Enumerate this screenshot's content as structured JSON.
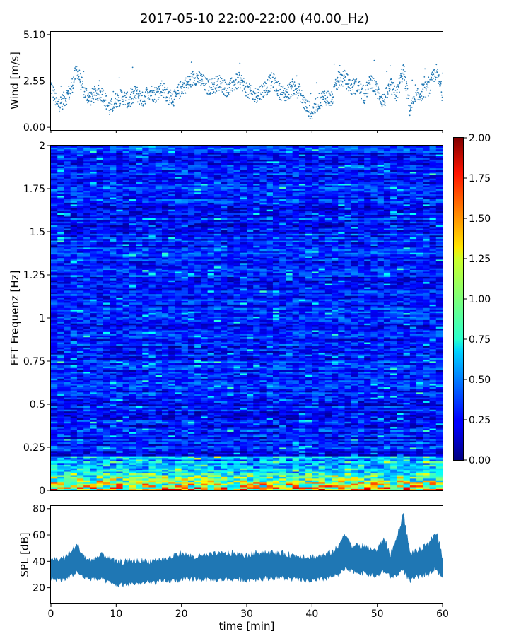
{
  "title": "2017-05-10 22:00-22:00 (40.00_Hz)",
  "colors": {
    "wind": "#1f77b4",
    "spl": "#1f77b4",
    "colormap": "jet"
  },
  "chart_data": [
    {
      "id": "wind",
      "type": "scatter",
      "title": "",
      "xlabel": "",
      "ylabel": "Wind [m/s]",
      "xlim": [
        0,
        60
      ],
      "ylim": [
        -0.15,
        5.25
      ],
      "y_ticks": [
        "0.00",
        "2.55",
        "5.10"
      ],
      "y_tick_values": [
        0,
        2.55,
        5.1
      ],
      "x_ticks": [
        0,
        10,
        20,
        30,
        40,
        50,
        60
      ],
      "show_x_tick_labels": false,
      "grid": false,
      "x": [
        0,
        1,
        2,
        3,
        4,
        5,
        6,
        7,
        8,
        9,
        10,
        11,
        12,
        13,
        14,
        15,
        16,
        17,
        18,
        19,
        20,
        21,
        22,
        23,
        24,
        25,
        26,
        27,
        28,
        29,
        30,
        31,
        32,
        33,
        34,
        35,
        36,
        37,
        38,
        39,
        40,
        41,
        42,
        43,
        44,
        45,
        46,
        47,
        48,
        49,
        50,
        51,
        52,
        53,
        54,
        55,
        56,
        57,
        58,
        59,
        60
      ],
      "values": [
        2.3,
        1.2,
        1.5,
        2.0,
        3.2,
        2.0,
        1.6,
        1.9,
        1.8,
        1.0,
        1.5,
        1.7,
        1.4,
        1.9,
        1.5,
        2.0,
        1.8,
        2.2,
        1.7,
        1.6,
        2.2,
        2.4,
        2.8,
        2.6,
        2.2,
        2.3,
        2.5,
        2.0,
        2.4,
        2.6,
        2.1,
        1.7,
        1.9,
        2.2,
        2.6,
        2.0,
        1.8,
        2.2,
        2.0,
        1.2,
        0.8,
        1.4,
        1.7,
        1.5,
        2.6,
        2.7,
        2.2,
        2.3,
        1.7,
        2.6,
        2.0,
        1.4,
        2.3,
        1.8,
        3.2,
        1.0,
        1.6,
        2.0,
        2.2,
        3.1,
        1.8
      ]
    },
    {
      "id": "spectrogram",
      "type": "heatmap",
      "title": "",
      "xlabel": "",
      "ylabel": "FFT Frequenz [Hz]",
      "xlim": [
        0,
        60
      ],
      "ylim": [
        0,
        2
      ],
      "y_ticks": [
        "0",
        "0.25",
        "0.5",
        "0.75",
        "1",
        "1.25",
        "1.5",
        "1.75",
        "2"
      ],
      "y_tick_values": [
        0,
        0.25,
        0.5,
        0.75,
        1,
        1.25,
        1.5,
        1.75,
        2
      ],
      "colorbar": {
        "range": [
          0,
          2
        ],
        "tick_labels": [
          "0.00",
          "0.25",
          "0.50",
          "0.75",
          "1.00",
          "1.25",
          "1.50",
          "1.75",
          "2.00"
        ],
        "tick_values": [
          0,
          0.25,
          0.5,
          0.75,
          1,
          1.25,
          1.5,
          1.75,
          2
        ],
        "colormap": "jet",
        "placement": "right"
      },
      "frequency_bins": 200,
      "time_bins": 60,
      "typical_value": 0.3,
      "low_frequency_value": 1.5
    },
    {
      "id": "spl",
      "type": "area",
      "title": "",
      "xlabel": "time [min]",
      "ylabel": "SPL [dB]",
      "xlim": [
        0,
        60
      ],
      "ylim": [
        8,
        82
      ],
      "y_ticks": [
        "20",
        "40",
        "60",
        "80"
      ],
      "y_tick_values": [
        20,
        40,
        60,
        80
      ],
      "x_ticks": [
        "0",
        "10",
        "20",
        "30",
        "40",
        "50",
        "60"
      ],
      "x_tick_values": [
        0,
        10,
        20,
        30,
        40,
        50,
        60
      ],
      "grid": false,
      "x": [
        0,
        2,
        4,
        5,
        6,
        8,
        10,
        12,
        15,
        18,
        20,
        22,
        25,
        28,
        30,
        32,
        35,
        38,
        40,
        42,
        44,
        45,
        46,
        48,
        50,
        51,
        52,
        53,
        54,
        55,
        56,
        58,
        59,
        60
      ],
      "low": [
        27,
        26,
        32,
        28,
        27,
        26,
        22,
        23,
        24,
        25,
        26,
        27,
        26,
        27,
        26,
        27,
        28,
        26,
        25,
        27,
        30,
        34,
        33,
        31,
        29,
        33,
        28,
        30,
        34,
        25,
        28,
        31,
        36,
        26
      ],
      "high": [
        41,
        42,
        52,
        44,
        40,
        45,
        39,
        40,
        40,
        42,
        46,
        43,
        45,
        46,
        44,
        47,
        46,
        44,
        43,
        44,
        50,
        62,
        52,
        51,
        48,
        58,
        44,
        58,
        76,
        46,
        47,
        53,
        63,
        43
      ]
    }
  ]
}
